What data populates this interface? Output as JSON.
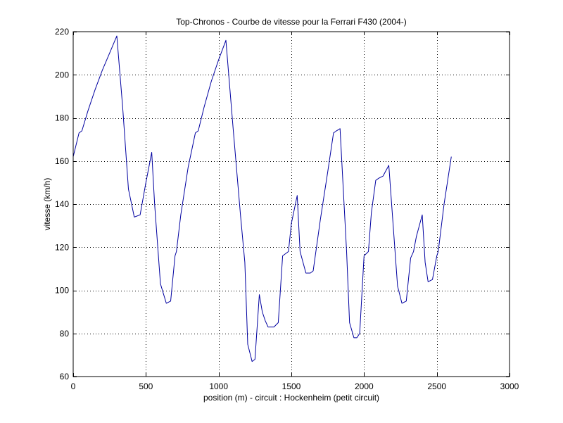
{
  "chart_data": {
    "type": "line",
    "title": "Top-Chronos - Courbe de vitesse pour la Ferrari F430 (2004-)",
    "xlabel": "position (m) - circuit : Hockenheim (petit circuit)",
    "ylabel": "vitesse (km/h)",
    "xlim": [
      0,
      3000
    ],
    "ylim": [
      60,
      220
    ],
    "xticks": [
      0,
      500,
      1000,
      1500,
      2000,
      2500,
      3000
    ],
    "yticks": [
      60,
      80,
      100,
      120,
      140,
      160,
      180,
      200,
      220
    ],
    "grid": true,
    "series_color": "#0000a0",
    "series": [
      {
        "x": [
          0,
          40,
          60,
          100,
          150,
          200,
          250,
          300,
          340,
          380,
          420,
          460,
          500,
          540,
          560,
          600,
          640,
          670,
          700,
          710,
          740,
          790,
          840,
          860,
          900,
          950,
          1000,
          1050,
          1100,
          1150,
          1180,
          1200,
          1230,
          1250,
          1280,
          1300,
          1320,
          1340,
          1380,
          1410,
          1440,
          1480,
          1500,
          1540,
          1560,
          1600,
          1630,
          1650,
          1700,
          1750,
          1790,
          1810,
          1835,
          1880,
          1900,
          1930,
          1950,
          1970,
          2000,
          2030,
          2050,
          2080,
          2100,
          2130,
          2170,
          2200,
          2230,
          2260,
          2290,
          2320,
          2340,
          2360,
          2400,
          2420,
          2440,
          2470,
          2500,
          2510,
          2550,
          2600
        ],
        "y": [
          162,
          173,
          174,
          183,
          193,
          202,
          210,
          218,
          185,
          147,
          134,
          135,
          150,
          164,
          140,
          103,
          94,
          95,
          116,
          118,
          135,
          157,
          173,
          174,
          185,
          197,
          207,
          216,
          175,
          135,
          113,
          75,
          67,
          68,
          98,
          90,
          86,
          83,
          83,
          85,
          116,
          118,
          131,
          144,
          118,
          108,
          108,
          109,
          133,
          155,
          173,
          174,
          175,
          118,
          85,
          78,
          78,
          80,
          116,
          118,
          136,
          151,
          152,
          153,
          158,
          130,
          102,
          94,
          95,
          115,
          118,
          125,
          135,
          113,
          104,
          105,
          116,
          118,
          140,
          162
        ]
      }
    ]
  }
}
